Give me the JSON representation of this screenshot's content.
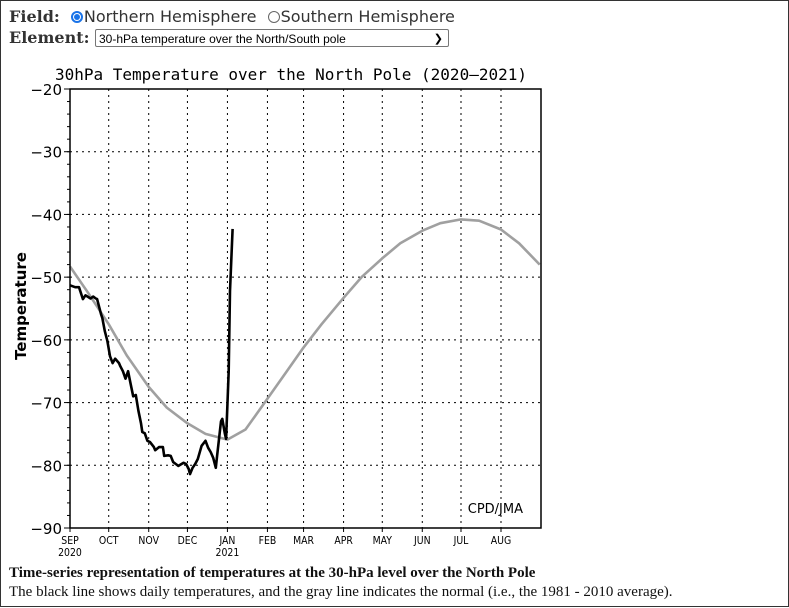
{
  "controls": {
    "field_label": "Field:",
    "field_options": [
      {
        "label": "Northern Hemisphere",
        "selected": true
      },
      {
        "label": "Southern Hemisphere",
        "selected": false
      }
    ],
    "element_label": "Element:",
    "element_selected": "30-hPa temperature over the North/South pole"
  },
  "caption": {
    "title": "Time-series representation of temperatures at the 30-hPa level over the North Pole",
    "text": "The black line shows daily temperatures, and the gray line indicates the normal (i.e., the 1981 - 2010 average)."
  },
  "chart_data": {
    "type": "line",
    "title": "30hPa Temperature over the North Pole (2020–2021)",
    "ylabel": "Temperature",
    "xlabel": "",
    "credit": "CPD/JMA",
    "xlim": [
      "2020-09-01",
      "2021-08-31"
    ],
    "ylim": [
      -90,
      -20
    ],
    "yticks": [
      -20,
      -30,
      -40,
      -50,
      -60,
      -70,
      -80,
      -90
    ],
    "ytick_labels": [
      "−20",
      "−30",
      "−40",
      "−50",
      "−60",
      "−70",
      "−80",
      "−90"
    ],
    "xticks": [
      {
        "date": "2020-09-01",
        "label": "SEP",
        "sub": "2020"
      },
      {
        "date": "2020-10-01",
        "label": "OCT"
      },
      {
        "date": "2020-11-01",
        "label": "NOV"
      },
      {
        "date": "2020-12-01",
        "label": "DEC"
      },
      {
        "date": "2021-01-01",
        "label": "JAN",
        "sub": "2021"
      },
      {
        "date": "2021-02-01",
        "label": "FEB"
      },
      {
        "date": "2021-03-01",
        "label": "MAR"
      },
      {
        "date": "2021-04-01",
        "label": "APR"
      },
      {
        "date": "2021-05-01",
        "label": "MAY"
      },
      {
        "date": "2021-06-01",
        "label": "JUN"
      },
      {
        "date": "2021-07-01",
        "label": "JUL"
      },
      {
        "date": "2021-08-01",
        "label": "AUG"
      }
    ],
    "grid": true,
    "series": [
      {
        "role": "daily",
        "color": "#000000",
        "points": [
          [
            "2020-09-01",
            -51.3
          ],
          [
            "2020-09-05",
            -51.6
          ],
          [
            "2020-09-08",
            -51.6
          ],
          [
            "2020-09-11",
            -53.5
          ],
          [
            "2020-09-13",
            -52.9
          ],
          [
            "2020-09-17",
            -53.4
          ],
          [
            "2020-09-19",
            -53.1
          ],
          [
            "2020-09-21",
            -53.4
          ],
          [
            "2020-09-22",
            -53.5
          ],
          [
            "2020-09-25",
            -55.9
          ],
          [
            "2020-09-26",
            -56.5
          ],
          [
            "2020-09-28",
            -58.6
          ],
          [
            "2020-09-30",
            -60.2
          ],
          [
            "2020-10-02",
            -62.6
          ],
          [
            "2020-10-04",
            -63.7
          ],
          [
            "2020-10-06",
            -63.0
          ],
          [
            "2020-10-09",
            -63.7
          ],
          [
            "2020-10-10",
            -64.2
          ],
          [
            "2020-10-12",
            -65.0
          ],
          [
            "2020-10-14",
            -66.2
          ],
          [
            "2020-10-16",
            -65.0
          ],
          [
            "2020-10-18",
            -67.0
          ],
          [
            "2020-10-20",
            -69.0
          ],
          [
            "2020-10-22",
            -68.8
          ],
          [
            "2020-10-24",
            -71.3
          ],
          [
            "2020-10-26",
            -73.3
          ],
          [
            "2020-10-27",
            -74.7
          ],
          [
            "2020-10-29",
            -74.9
          ],
          [
            "2020-10-31",
            -76.1
          ],
          [
            "2020-11-02",
            -76.3
          ],
          [
            "2020-11-05",
            -77.1
          ],
          [
            "2020-11-06",
            -77.6
          ],
          [
            "2020-11-09",
            -77.1
          ],
          [
            "2020-11-12",
            -77.1
          ],
          [
            "2020-11-13",
            -78.5
          ],
          [
            "2020-11-16",
            -78.4
          ],
          [
            "2020-11-18",
            -78.5
          ],
          [
            "2020-11-20",
            -79.5
          ],
          [
            "2020-11-22",
            -79.8
          ],
          [
            "2020-11-24",
            -80.1
          ],
          [
            "2020-11-28",
            -79.6
          ],
          [
            "2020-11-30",
            -79.8
          ],
          [
            "2020-12-02",
            -80.6
          ],
          [
            "2020-12-03",
            -81.4
          ],
          [
            "2020-12-05",
            -80.4
          ],
          [
            "2020-12-07",
            -79.8
          ],
          [
            "2020-12-09",
            -79.0
          ],
          [
            "2020-12-12",
            -76.9
          ],
          [
            "2020-12-15",
            -76.1
          ],
          [
            "2020-12-17",
            -77.2
          ],
          [
            "2020-12-19",
            -77.9
          ],
          [
            "2020-12-21",
            -78.8
          ],
          [
            "2020-12-23",
            -80.4
          ],
          [
            "2020-12-24",
            -78.5
          ],
          [
            "2020-12-27",
            -73.0
          ],
          [
            "2020-12-28",
            -72.6
          ],
          [
            "2020-12-30",
            -74.9
          ],
          [
            "2020-12-31",
            -75.8
          ],
          [
            "2021-01-02",
            -65.0
          ],
          [
            "2021-01-03",
            -52.2
          ],
          [
            "2021-01-05",
            -42.3
          ]
        ]
      },
      {
        "role": "normal",
        "color": "#a0a0a0",
        "points": [
          [
            "2020-09-01",
            -48.3
          ],
          [
            "2020-09-15",
            -52.5
          ],
          [
            "2020-10-01",
            -57.5
          ],
          [
            "2020-10-15",
            -62.5
          ],
          [
            "2020-11-01",
            -67.5
          ],
          [
            "2020-11-15",
            -70.8
          ],
          [
            "2020-12-01",
            -73.3
          ],
          [
            "2020-12-15",
            -75.0
          ],
          [
            "2021-01-01",
            -75.9
          ],
          [
            "2021-01-15",
            -74.3
          ],
          [
            "2021-02-01",
            -69.4
          ],
          [
            "2021-02-15",
            -65.3
          ],
          [
            "2021-03-01",
            -61.2
          ],
          [
            "2021-03-15",
            -57.5
          ],
          [
            "2021-04-01",
            -53.3
          ],
          [
            "2021-04-15",
            -50.0
          ],
          [
            "2021-05-01",
            -47.0
          ],
          [
            "2021-05-15",
            -44.6
          ],
          [
            "2021-06-01",
            -42.6
          ],
          [
            "2021-06-15",
            -41.4
          ],
          [
            "2021-07-01",
            -40.8
          ],
          [
            "2021-07-15",
            -41.0
          ],
          [
            "2021-08-01",
            -42.4
          ],
          [
            "2021-08-15",
            -44.6
          ],
          [
            "2021-08-31",
            -48.0
          ]
        ]
      }
    ]
  }
}
